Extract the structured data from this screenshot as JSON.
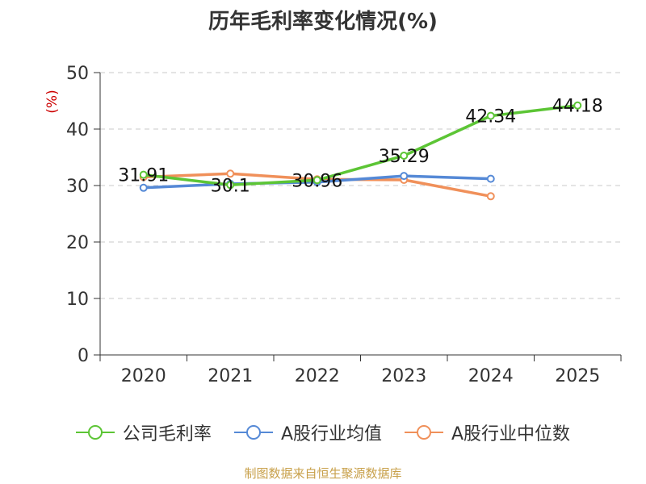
{
  "chart_data": {
    "type": "line",
    "title": "历年毛利率变化情况(%)",
    "ylabel": "(%)",
    "xlabel": "",
    "categories": [
      "2020",
      "2021",
      "2022",
      "2023",
      "2024",
      "2025"
    ],
    "ylim": [
      0,
      50
    ],
    "yticks": [
      0,
      10,
      20,
      30,
      40,
      50
    ],
    "grid": true,
    "legend_position": "bottom",
    "series": [
      {
        "name": "公司毛利率",
        "color": "#5cc535",
        "values": [
          31.91,
          30.1,
          30.96,
          35.29,
          42.34,
          44.18
        ],
        "labels": [
          "31.91",
          "30.1",
          "30.96",
          "35.29",
          "42.34",
          "44.18"
        ]
      },
      {
        "name": "A股行业均值",
        "color": "#5589d6",
        "values": [
          29.6,
          30.3,
          30.6,
          31.7,
          31.2,
          null
        ],
        "labels": []
      },
      {
        "name": "A股行业中位数",
        "color": "#f0905a",
        "values": [
          31.5,
          32.1,
          31.1,
          31.0,
          28.1,
          null
        ],
        "labels": []
      }
    ]
  },
  "source": "制图数据来自恒生聚源数据库"
}
